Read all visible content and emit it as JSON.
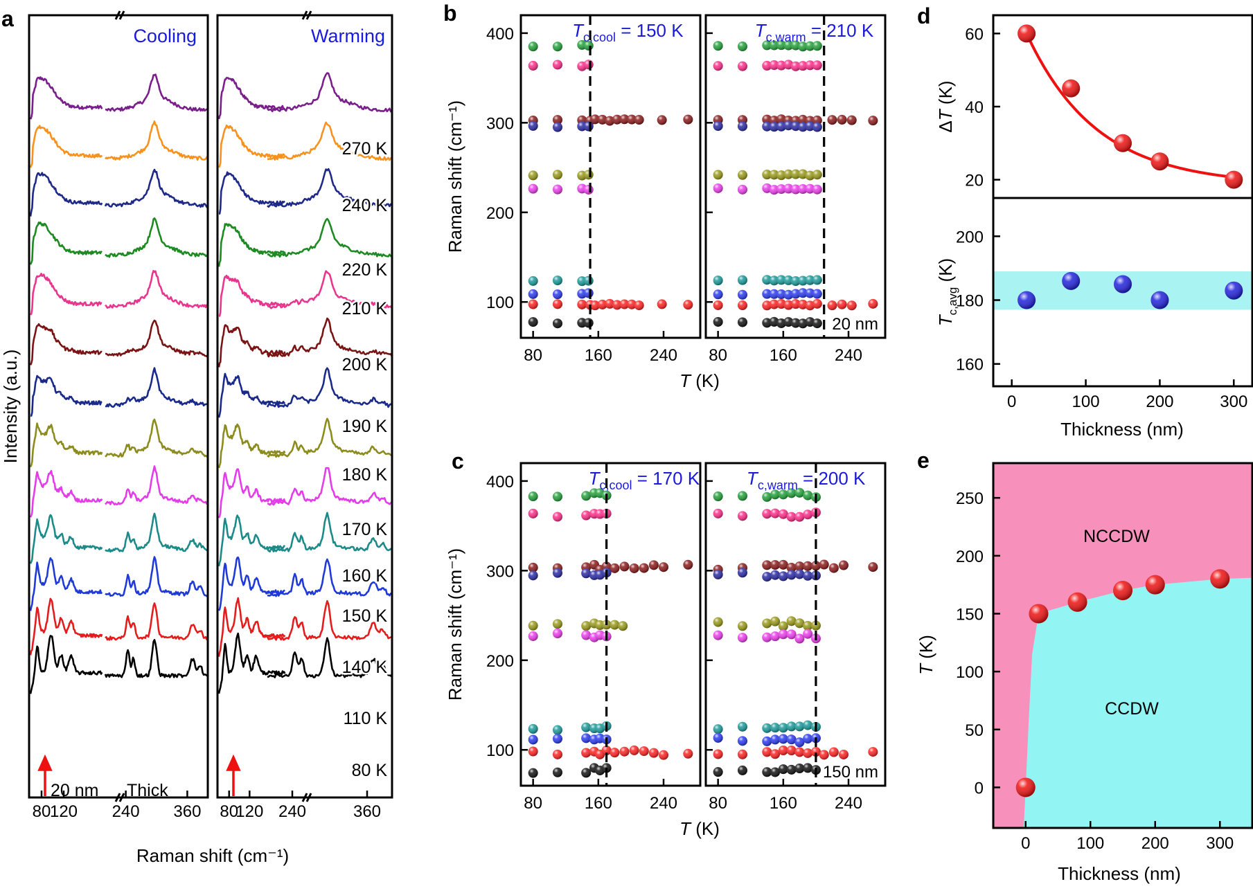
{
  "figure": {
    "panel_labels": [
      "a",
      "b",
      "c",
      "d",
      "e"
    ]
  },
  "chart_data": [
    {
      "id": "a",
      "type": "line",
      "title": "",
      "subplots": [
        "Cooling",
        "Warming"
      ],
      "xlabel": "Raman shift (cm⁻¹)",
      "ylabel": "Intensity (a.u.)",
      "xticks": [
        "80",
        "120",
        "240",
        "360"
      ],
      "xlim_low_segment": [
        60,
        190
      ],
      "xlim_high_segment": [
        200,
        400
      ],
      "series_labels": [
        "270 K",
        "240 K",
        "220 K",
        "210 K",
        "200 K",
        "190 K",
        "180 K",
        "170 K",
        "160 K",
        "150 K",
        "140 K",
        "110 K",
        "80 K"
      ],
      "series_colors": [
        "#7a1e8c",
        "#f7921e",
        "#1f2a88",
        "#1d8a22",
        "#e8368f",
        "#7a1414",
        "#1a2a8a",
        "#8c8c1e",
        "#e23de8",
        "#1d8a8a",
        "#1f3ad6",
        "#e31c1c",
        "#000000"
      ],
      "annotations": [
        "20 nm",
        "Thick"
      ],
      "peaks_cm1": [
        72,
        80,
        97,
        115,
        133,
        244,
        296,
        370
      ]
    },
    {
      "id": "b",
      "type": "scatter",
      "subplots": [
        "cool",
        "warm"
      ],
      "xlabel_italic": "T",
      "xlabel_unit": " (K)",
      "ylabel": "Raman shift (cm⁻¹)",
      "xticks": [
        "80",
        "160",
        "240"
      ],
      "xlim": [
        65,
        285
      ],
      "ylim": [
        60,
        420
      ],
      "yticks": [
        "100",
        "200",
        "300",
        "400"
      ],
      "tc_cool": 150,
      "tc_warm": 210,
      "tc_cool_label": {
        "sym": "T",
        "sub": "c,cool",
        "rest": " = 150 K"
      },
      "tc_warm_label": {
        "sym": "T",
        "sub": "c,warm",
        "rest": " = 210 K"
      },
      "thickness_label": "20 nm",
      "modes": [
        {
          "name": "green",
          "color": "#23a23a",
          "value": 386
        },
        {
          "name": "pink",
          "color": "#ff2d8a",
          "value": 364
        },
        {
          "name": "maroon",
          "color": "#8b1a1a",
          "value": 303
        },
        {
          "name": "navy",
          "color": "#2a2aa5",
          "value": 296
        },
        {
          "name": "olive",
          "color": "#9a9a1a",
          "value": 242
        },
        {
          "name": "magenta",
          "color": "#ee3dee",
          "value": 226
        },
        {
          "name": "teal",
          "color": "#1a9a9a",
          "value": 124
        },
        {
          "name": "blue",
          "color": "#2a3af0",
          "value": 109
        },
        {
          "name": "red",
          "color": "#ff2222",
          "value": 97
        },
        {
          "name": "black",
          "color": "#111111",
          "value": 77
        }
      ]
    },
    {
      "id": "c",
      "type": "scatter",
      "subplots": [
        "cool",
        "warm"
      ],
      "xlabel_italic": "T",
      "xlabel_unit": " (K)",
      "ylabel": "Raman shift (cm⁻¹)",
      "xticks": [
        "80",
        "160",
        "240"
      ],
      "xlim": [
        65,
        285
      ],
      "ylim": [
        60,
        420
      ],
      "yticks": [
        "100",
        "200",
        "300",
        "400"
      ],
      "tc_cool": 170,
      "tc_warm": 200,
      "tc_cool_label": {
        "sym": "T",
        "sub": "c,cool",
        "rest": " = 170 K"
      },
      "tc_warm_label": {
        "sym": "T",
        "sub": "c,warm",
        "rest": " = 200 K"
      },
      "thickness_label": "150 nm",
      "modes": [
        {
          "name": "green",
          "color": "#23a23a",
          "value": 385
        },
        {
          "name": "pink",
          "color": "#ff2d8a",
          "value": 362
        },
        {
          "name": "maroon",
          "color": "#8b1a1a",
          "value": 304
        },
        {
          "name": "navy",
          "color": "#2a2aa5",
          "value": 296
        },
        {
          "name": "olive",
          "color": "#9a9a1a",
          "value": 241
        },
        {
          "name": "magenta",
          "color": "#ee3dee",
          "value": 227
        },
        {
          "name": "teal",
          "color": "#1a9a9a",
          "value": 125
        },
        {
          "name": "blue",
          "color": "#2a3af0",
          "value": 111
        },
        {
          "name": "red",
          "color": "#ff2222",
          "value": 97
        },
        {
          "name": "black",
          "color": "#111111",
          "value": 77
        }
      ]
    },
    {
      "id": "d_top",
      "type": "scatter",
      "ylabel_italic": "T",
      "ylabel_prefix": "Δ",
      "ylabel_unit": " (K)",
      "xlim": [
        -25,
        325
      ],
      "ylim": [
        15,
        65
      ],
      "yticks": [
        "20",
        "40",
        "60"
      ],
      "x": [
        20,
        80,
        150,
        200,
        300
      ],
      "y": [
        60,
        45,
        30,
        25,
        20
      ],
      "fit": "exponential decay",
      "color": "#ee1111"
    },
    {
      "id": "d_bottom",
      "type": "scatter",
      "ylabel_italic": "T",
      "ylabel_sub": "c,avg",
      "ylabel_unit": " (K)",
      "xlabel": "Thickness (nm)",
      "xlim": [
        -25,
        325
      ],
      "ylim": [
        153,
        212
      ],
      "yticks": [
        "160",
        "180",
        "200"
      ],
      "xticks": [
        "0",
        "100",
        "200",
        "300"
      ],
      "x": [
        20,
        80,
        150,
        200,
        300
      ],
      "y": [
        180,
        186,
        185,
        180,
        183
      ],
      "band": [
        177,
        189
      ],
      "band_color": "#aaf3f3",
      "color": "#2222dd"
    },
    {
      "id": "e",
      "type": "scatter",
      "xlabel": "Thickness (nm)",
      "ylabel_italic": "T",
      "ylabel_unit": " (K)",
      "xlim": [
        -50,
        350
      ],
      "ylim": [
        -35,
        280
      ],
      "yticks": [
        "0",
        "50",
        "100",
        "150",
        "200",
        "250"
      ],
      "xticks": [
        "0",
        "100",
        "200",
        "300"
      ],
      "x": [
        0,
        20,
        80,
        150,
        200,
        300
      ],
      "y": [
        0,
        150,
        160,
        170,
        175,
        180
      ],
      "regions": [
        "NCCDW",
        "CCDW"
      ],
      "region_colors": [
        "#f790bb",
        "#93f5f3"
      ],
      "color": "#ee1111"
    }
  ]
}
